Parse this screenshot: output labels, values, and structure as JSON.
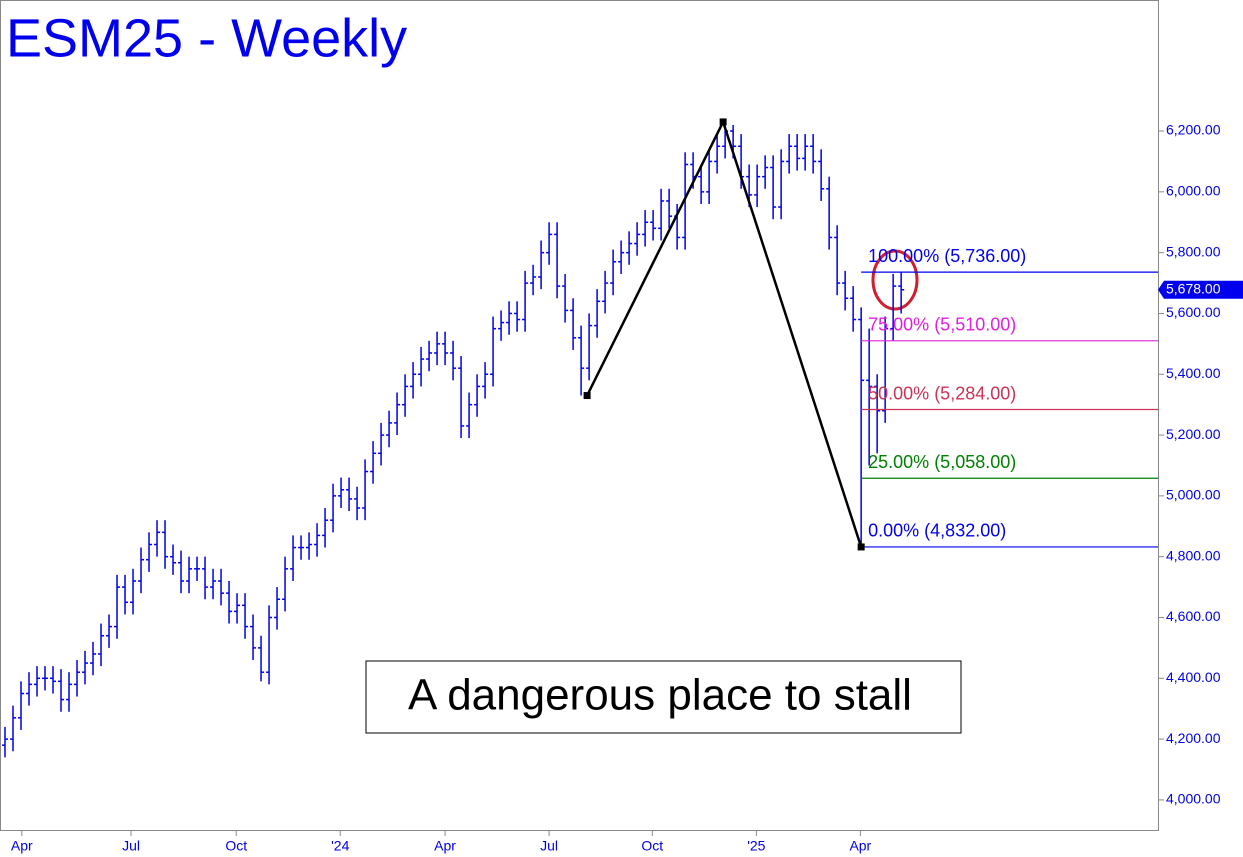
{
  "chart_data": {
    "type": "ohlc",
    "title": "ESM25 - Weekly",
    "color": "#0000ee",
    "ylim": [
      3901,
      6631
    ],
    "xlim": [
      -0.625,
      144.1
    ],
    "yticks": [
      {
        "value": 4000,
        "label": "4,000.00"
      },
      {
        "value": 4200,
        "label": "4,200.00"
      },
      {
        "value": 4400,
        "label": "4,400.00"
      },
      {
        "value": 4600,
        "label": "4,600.00"
      },
      {
        "value": 4800,
        "label": "4,800.00"
      },
      {
        "value": 5000,
        "label": "5,000.00"
      },
      {
        "value": 5200,
        "label": "5,200.00"
      },
      {
        "value": 5400,
        "label": "5,400.00"
      },
      {
        "value": 5600,
        "label": "5,600.00"
      },
      {
        "value": 5800,
        "label": "5,800.00"
      },
      {
        "value": 6000,
        "label": "6,000.00"
      },
      {
        "value": 6200,
        "label": "6,200.00"
      }
    ],
    "xticks": [
      {
        "value": 2.1,
        "label": "Apr"
      },
      {
        "value": 15.75,
        "label": "Jul"
      },
      {
        "value": 28.9,
        "label": "Oct"
      },
      {
        "value": 41.9,
        "label": "'24"
      },
      {
        "value": 55,
        "label": "Apr"
      },
      {
        "value": 68,
        "label": "Jul"
      },
      {
        "value": 80.9,
        "label": "Oct"
      },
      {
        "value": 93.9,
        "label": "'25"
      },
      {
        "value": 106.9,
        "label": "Apr"
      }
    ],
    "open": [
      4180,
      4200,
      4270,
      4350,
      4380,
      4400,
      4400,
      4390,
      4330,
      4380,
      4420,
      4450,
      4480,
      4540,
      4570,
      4700,
      4650,
      4720,
      4790,
      4840,
      4880,
      4800,
      4780,
      4720,
      4760,
      4760,
      4700,
      4720,
      4680,
      4620,
      4640,
      4570,
      4500,
      4420,
      4600,
      4660,
      4760,
      4830,
      4830,
      4840,
      4870,
      4920,
      5000,
      5020,
      4990,
      4960,
      5080,
      5140,
      5200,
      5240,
      5300,
      5360,
      5400,
      5450,
      5470,
      5500,
      5470,
      5420,
      5230,
      5300,
      5360,
      5400,
      5550,
      5570,
      5600,
      5580,
      5700,
      5720,
      5800,
      5860,
      5690,
      5610,
      5520,
      5420,
      5560,
      5640,
      5700,
      5770,
      5800,
      5830,
      5860,
      5900,
      5880,
      5970,
      5920,
      5850,
      6090,
      6050,
      6000,
      6100,
      6150,
      6200,
      6150,
      6050,
      5990,
      6050,
      6080,
      5950,
      6100,
      6150,
      6110,
      6150,
      6100,
      6010,
      5850,
      5700,
      5650,
      5580,
      5380,
      5360,
      5280,
      5550,
      5690
    ],
    "high": [
      4240,
      4310,
      4390,
      4420,
      4440,
      4440,
      4440,
      4430,
      4420,
      4460,
      4490,
      4520,
      4580,
      4610,
      4740,
      4740,
      4760,
      4830,
      4880,
      4920,
      4920,
      4840,
      4820,
      4800,
      4800,
      4800,
      4760,
      4760,
      4720,
      4680,
      4680,
      4610,
      4540,
      4640,
      4700,
      4800,
      4870,
      4870,
      4880,
      4910,
      4960,
      5040,
      5060,
      5060,
      5030,
      5120,
      5180,
      5240,
      5280,
      5340,
      5400,
      5440,
      5490,
      5510,
      5540,
      5540,
      5510,
      5460,
      5340,
      5400,
      5440,
      5590,
      5610,
      5640,
      5640,
      5740,
      5760,
      5840,
      5900,
      5900,
      5730,
      5650,
      5560,
      5600,
      5680,
      5740,
      5810,
      5840,
      5870,
      5900,
      5940,
      5940,
      6010,
      6010,
      5960,
      6130,
      6130,
      6090,
      6140,
      6190,
      6230,
      6220,
      6190,
      6090,
      6090,
      6120,
      6120,
      6140,
      6190,
      6190,
      6190,
      6190,
      6140,
      6050,
      5890,
      5740,
      5690,
      5620,
      5550,
      5400,
      5590,
      5730,
      5736
    ],
    "low": [
      4140,
      4160,
      4230,
      4310,
      4340,
      4360,
      4350,
      4290,
      4290,
      4340,
      4380,
      4410,
      4440,
      4500,
      4530,
      4610,
      4610,
      4680,
      4750,
      4800,
      4760,
      4740,
      4680,
      4680,
      4720,
      4660,
      4660,
      4640,
      4580,
      4580,
      4530,
      4460,
      4390,
      4380,
      4560,
      4620,
      4720,
      4790,
      4790,
      4800,
      4830,
      4880,
      4960,
      4950,
      4920,
      4920,
      5040,
      5100,
      5160,
      5200,
      5260,
      5320,
      5360,
      5410,
      5430,
      5430,
      5380,
      5190,
      5190,
      5260,
      5320,
      5360,
      5510,
      5530,
      5540,
      5540,
      5660,
      5680,
      5760,
      5650,
      5570,
      5480,
      5330,
      5380,
      5520,
      5600,
      5660,
      5730,
      5760,
      5790,
      5820,
      5840,
      5840,
      5880,
      5810,
      5810,
      6010,
      5960,
      5960,
      6060,
      6110,
      6110,
      6010,
      5950,
      5950,
      6010,
      5910,
      5910,
      6060,
      6070,
      6070,
      6060,
      5970,
      5810,
      5660,
      5610,
      5540,
      4832,
      5100,
      5140,
      5240,
      5510,
      5600
    ],
    "close": [
      4200,
      4270,
      4350,
      4380,
      4400,
      4400,
      4390,
      4330,
      4380,
      4420,
      4450,
      4480,
      4540,
      4570,
      4700,
      4650,
      4720,
      4790,
      4840,
      4880,
      4800,
      4780,
      4720,
      4760,
      4760,
      4700,
      4720,
      4680,
      4620,
      4640,
      4570,
      4500,
      4420,
      4600,
      4660,
      4760,
      4830,
      4830,
      4840,
      4870,
      4920,
      5000,
      5020,
      4990,
      4960,
      5080,
      5140,
      5200,
      5240,
      5300,
      5360,
      5400,
      5450,
      5470,
      5500,
      5470,
      5420,
      5230,
      5300,
      5360,
      5400,
      5550,
      5570,
      5600,
      5580,
      5700,
      5720,
      5800,
      5860,
      5690,
      5610,
      5520,
      5420,
      5560,
      5640,
      5700,
      5770,
      5800,
      5830,
      5860,
      5900,
      5880,
      5970,
      5920,
      5850,
      6090,
      6050,
      6000,
      6100,
      6150,
      6200,
      6150,
      6050,
      5990,
      6050,
      6080,
      5950,
      6100,
      6150,
      6110,
      6150,
      6100,
      6010,
      5850,
      5700,
      5650,
      5580,
      5380,
      5360,
      5280,
      5550,
      5690,
      5678
    ],
    "last_price": {
      "value": 5678,
      "label": "5,678.00"
    },
    "swing": {
      "x": [
        72.75,
        89.75,
        107
      ],
      "values": [
        5330,
        6230,
        4832
      ]
    },
    "fib_start": 107,
    "fib_levels": [
      {
        "value": 5736,
        "label": "100.00% (5,736.00)",
        "color": "#0000ee"
      },
      {
        "value": 5510,
        "label": "75.00% (5,510.00)",
        "color": "#e020e0"
      },
      {
        "value": 5284,
        "label": "50.00% (5,284.00)",
        "color": "#cc3355"
      },
      {
        "value": 5058,
        "label": "25.00% (5,058.00)",
        "color": "#008000"
      },
      {
        "value": 4832,
        "label": "0.00% (4,832.00)",
        "color": "#0000ee"
      }
    ],
    "annotation": "A dangerous place to stall"
  }
}
